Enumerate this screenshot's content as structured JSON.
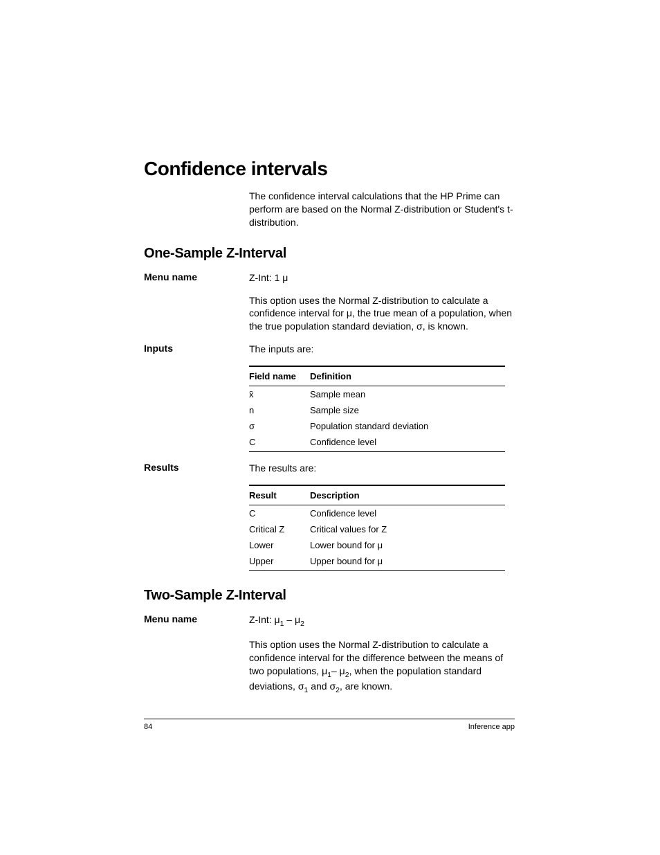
{
  "heading1": "Confidence intervals",
  "intro": "The confidence interval calculations that the HP Prime can perform are based on the Normal Z-distribution or Student's t-distribution.",
  "sec1": {
    "heading": "One-Sample Z-Interval",
    "menuLabel": "Menu name",
    "menuValue": "Z-Int: 1 μ",
    "desc": "This option uses the Normal Z-distribution to calculate a confidence interval for μ, the true mean of a population, when the true population standard deviation, σ, is known.",
    "inputsLabel": "Inputs",
    "inputsIntro": "The inputs are:",
    "inputsTable": {
      "h1": "Field name",
      "h2": "Definition",
      "rows": [
        {
          "a": "x̄",
          "b": "Sample mean"
        },
        {
          "a": "n",
          "b": "Sample size"
        },
        {
          "a": "σ",
          "b": "Population standard deviation"
        },
        {
          "a": "C",
          "b": "Confidence level"
        }
      ]
    },
    "resultsLabel": "Results",
    "resultsIntro": "The results are:",
    "resultsTable": {
      "h1": "Result",
      "h2": "Description",
      "rows": [
        {
          "a": "C",
          "b": "Confidence level"
        },
        {
          "a": "Critical Z",
          "b": "Critical values for Z"
        },
        {
          "a": "Lower",
          "b": "Lower bound for μ"
        },
        {
          "a": "Upper",
          "b": "Upper bound for μ"
        }
      ]
    }
  },
  "sec2": {
    "heading": "Two-Sample Z-Interval",
    "menuLabel": "Menu name",
    "menuValuePrefix": "Z-Int: μ",
    "menuValueSub1": "1",
    "menuValueMid": " – μ",
    "menuValueSub2": "2",
    "descPart1": "This option uses the Normal Z-distribution to calculate a confidence interval for the difference between the means of two populations, μ",
    "descSub1": "1",
    "descPart2": "– μ",
    "descSub2": "2",
    "descPart3": ", when the population standard deviations, σ",
    "descSub3": "1",
    "descPart4": " and σ",
    "descSub4": "2",
    "descPart5": ", are known."
  },
  "footer": {
    "pageNum": "84",
    "chapter": "Inference app"
  }
}
